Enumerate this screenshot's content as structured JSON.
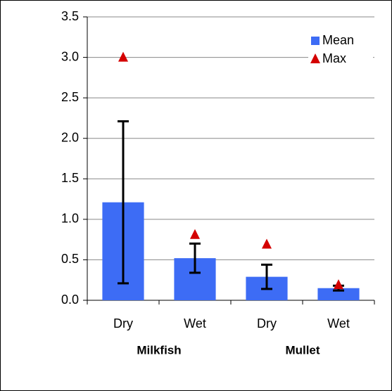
{
  "chart_data": {
    "type": "bar",
    "categories": [
      "Dry",
      "Wet",
      "Dry",
      "Wet"
    ],
    "group_labels": [
      "Milkfish",
      "Mullet"
    ],
    "series": [
      {
        "name": "Mean",
        "color": "#3d6cf5",
        "values": [
          1.21,
          0.52,
          0.29,
          0.15
        ],
        "errors": [
          1.0,
          0.18,
          0.15,
          0.03
        ]
      },
      {
        "name": "Max",
        "color": "#d40000",
        "marker": "triangle",
        "values": [
          3.0,
          0.81,
          0.69,
          0.19
        ]
      }
    ],
    "ylim": [
      0,
      3.5
    ],
    "yticks": [
      {
        "value": 0,
        "label": "0.0"
      },
      {
        "value": 0.5,
        "label": "0.5"
      },
      {
        "value": 1,
        "label": "1.0"
      },
      {
        "value": 1.5,
        "label": "1.5"
      },
      {
        "value": 2,
        "label": "2.0"
      },
      {
        "value": 2.5,
        "label": "2.5"
      },
      {
        "value": 3,
        "label": "3.0"
      },
      {
        "value": 3.5,
        "label": "3.5"
      }
    ],
    "grid": true,
    "legend": "upper right"
  }
}
